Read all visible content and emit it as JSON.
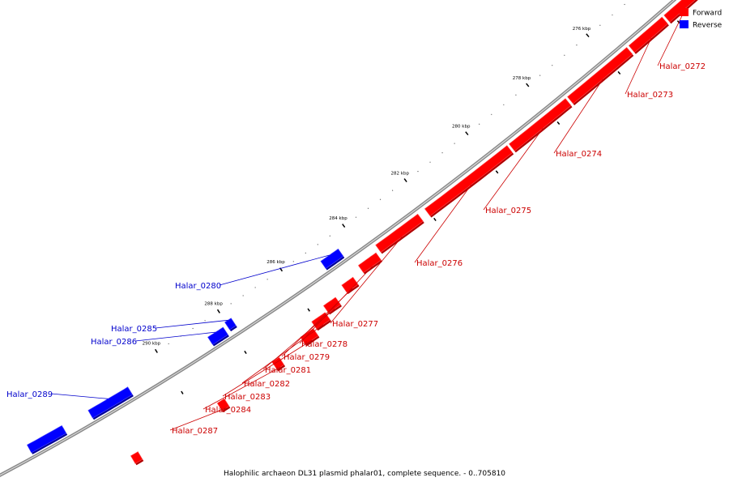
{
  "caption": "Halophilic archaeon DL31 plasmid phalar01, complete sequence. - 0..705810",
  "legend": {
    "forward": {
      "label": "Forward",
      "color": "#ff0000"
    },
    "reverse": {
      "label": "Reverse",
      "color": "#0000ff"
    }
  },
  "ticks": [
    "274 kbp",
    "276 kbp",
    "278 kbp",
    "280 kbp",
    "282 kbp",
    "284 kbp",
    "286 kbp",
    "288 kbp",
    "290 kbp"
  ],
  "genes": [
    {
      "name": "Halar_0272",
      "strand": "forward"
    },
    {
      "name": "Halar_0273",
      "strand": "forward"
    },
    {
      "name": "Halar_0274",
      "strand": "forward"
    },
    {
      "name": "Halar_0275",
      "strand": "forward"
    },
    {
      "name": "Halar_0276",
      "strand": "forward"
    },
    {
      "name": "Halar_0277",
      "strand": "forward"
    },
    {
      "name": "Halar_0278",
      "strand": "forward"
    },
    {
      "name": "Halar_0279",
      "strand": "forward"
    },
    {
      "name": "Halar_0281",
      "strand": "forward"
    },
    {
      "name": "Halar_0282",
      "strand": "forward"
    },
    {
      "name": "Halar_0283",
      "strand": "forward"
    },
    {
      "name": "Halar_0284",
      "strand": "forward"
    },
    {
      "name": "Halar_0287",
      "strand": "forward"
    },
    {
      "name": "Halar_0280",
      "strand": "reverse"
    },
    {
      "name": "Halar_0285",
      "strand": "reverse"
    },
    {
      "name": "Halar_0286",
      "strand": "reverse"
    },
    {
      "name": "Halar_0289",
      "strand": "reverse"
    }
  ],
  "colors": {
    "forward_dark": "#b00000",
    "forward_light": "#ff5050",
    "reverse_dark": "#00009a",
    "reverse_light": "#5050ff",
    "backbone": "#888888",
    "forward_label": "#cc0000",
    "reverse_label": "#0000cc"
  }
}
